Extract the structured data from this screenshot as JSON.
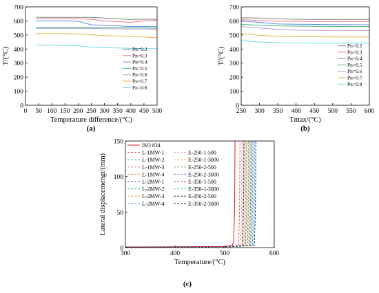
{
  "figure": {
    "panels": [
      "(a)",
      "(b)",
      "(c)"
    ]
  },
  "chart_data": [
    {
      "type": "line",
      "panel": "(a)",
      "xlabel": "Temperature difference/(°C)",
      "ylabel": "T/(°C)",
      "xlim": [
        0,
        500
      ],
      "ylim": [
        0,
        700
      ],
      "xticks": [
        0,
        50,
        100,
        150,
        200,
        250,
        300,
        350,
        400,
        450,
        500
      ],
      "yticks": [
        0,
        100,
        200,
        300,
        400,
        500,
        600,
        700
      ],
      "legend_position": "right",
      "x": [
        40,
        100,
        200,
        250,
        300,
        400,
        450,
        500
      ],
      "series": [
        {
          "name": "Pn=0.2",
          "color": "#808080",
          "values": [
            625,
            625,
            625,
            625,
            620,
            610,
            612,
            612
          ]
        },
        {
          "name": "Pn=0.3",
          "color": "#e87a80",
          "values": [
            615,
            615,
            615,
            612,
            600,
            590,
            600,
            605
          ]
        },
        {
          "name": "Pn=0.4",
          "color": "#5a8cd8",
          "values": [
            600,
            600,
            598,
            572,
            570,
            560,
            560,
            560
          ]
        },
        {
          "name": "Pn=0.5",
          "color": "#3cb878",
          "values": [
            555,
            555,
            555,
            555,
            552,
            550,
            550,
            548
          ]
        },
        {
          "name": "Pn=0.6",
          "color": "#b09ad8",
          "values": [
            547,
            547,
            547,
            546,
            545,
            543,
            542,
            541
          ]
        },
        {
          "name": "Pn=0.7",
          "color": "#e6b040",
          "values": [
            510,
            510,
            508,
            502,
            495,
            490,
            485,
            480
          ]
        },
        {
          "name": "Pn=0.8",
          "color": "#6fd8e0",
          "values": [
            428,
            428,
            424,
            412,
            410,
            405,
            403,
            402
          ]
        }
      ]
    },
    {
      "type": "line",
      "panel": "(b)",
      "xlabel": "Tmax/(°C)",
      "ylabel": "T/(°C)",
      "xlim": [
        250,
        600
      ],
      "ylim": [
        0,
        700
      ],
      "xticks": [
        250,
        300,
        350,
        400,
        450,
        500,
        550,
        600
      ],
      "yticks": [
        0,
        100,
        200,
        300,
        400,
        500,
        600,
        700
      ],
      "legend_position": "right",
      "x": [
        250,
        300,
        350,
        400,
        450,
        500,
        550,
        600
      ],
      "series": [
        {
          "name": "Pn=0.2",
          "color": "#808080",
          "values": [
            623,
            620,
            615,
            612,
            611,
            611,
            610,
            610
          ]
        },
        {
          "name": "Pn=0.3",
          "color": "#e87a80",
          "values": [
            610,
            602,
            598,
            597,
            596,
            596,
            595,
            595
          ]
        },
        {
          "name": "Pn=0.4",
          "color": "#5a8cd8",
          "values": [
            598,
            590,
            578,
            576,
            575,
            574,
            573,
            572
          ]
        },
        {
          "name": "Pn=0.5",
          "color": "#3cb878",
          "values": [
            575,
            570,
            565,
            563,
            562,
            561,
            560,
            560
          ]
        },
        {
          "name": "Pn=0.6",
          "color": "#b09ad8",
          "values": [
            560,
            550,
            540,
            535,
            533,
            532,
            532,
            531
          ]
        },
        {
          "name": "Pn=0.7",
          "color": "#e6b040",
          "values": [
            510,
            498,
            490,
            488,
            487,
            486,
            486,
            485
          ]
        },
        {
          "name": "Pn=0.8",
          "color": "#6fd8e0",
          "values": [
            460,
            450,
            444,
            443,
            442,
            442,
            441,
            441
          ]
        }
      ]
    },
    {
      "type": "line",
      "panel": "(c)",
      "xlabel": "Temperature/(°C)",
      "ylabel": "Lateral displacemengt/(mm)",
      "xlim": [
        300,
        600
      ],
      "ylim": [
        0,
        150
      ],
      "xticks": [
        300,
        400,
        500,
        600
      ],
      "yticks": [
        0,
        50,
        100,
        150
      ],
      "legend_position": "top-left",
      "series": [
        {
          "name": "ISO 834",
          "color": "#d62020",
          "dash": "",
          "xs": [
            300,
            500,
            515,
            518,
            520,
            521
          ],
          "ys": [
            1,
            1.5,
            3,
            8,
            50,
            150
          ]
        },
        {
          "name": "L-1MW-1",
          "color": "#e05050",
          "dash": "3 2",
          "xs": [
            300,
            500,
            528,
            530,
            531
          ],
          "ys": [
            0.5,
            1,
            3,
            50,
            150
          ]
        },
        {
          "name": "L-1MW-2",
          "color": "#40c0d0",
          "dash": "3 2",
          "xs": [
            300,
            500,
            540,
            542,
            543
          ],
          "ys": [
            0.5,
            1,
            3,
            50,
            150
          ]
        },
        {
          "name": "L-1MW-3",
          "color": "#e07070",
          "dash": "3 2",
          "xs": [
            300,
            500,
            535,
            537,
            538
          ],
          "ys": [
            0.5,
            1,
            3,
            50,
            150
          ]
        },
        {
          "name": "L-1MW-4",
          "color": "#e0a020",
          "dash": "3 2",
          "xs": [
            300,
            500,
            545,
            547,
            548
          ],
          "ys": [
            0.5,
            1,
            3,
            50,
            150
          ]
        },
        {
          "name": "L-2MW-1",
          "color": "#4070d0",
          "dash": "3 2",
          "xs": [
            300,
            500,
            550,
            552,
            553
          ],
          "ys": [
            0.5,
            1,
            3,
            50,
            150
          ]
        },
        {
          "name": "L-2MW-2",
          "color": "#30b070",
          "dash": "3 2",
          "xs": [
            300,
            500,
            552,
            554,
            555
          ],
          "ys": [
            0.5,
            1,
            3,
            50,
            150
          ]
        },
        {
          "name": "L-2MW-3",
          "color": "#e0b040",
          "dash": "3 2",
          "xs": [
            300,
            500,
            548,
            550,
            551
          ],
          "ys": [
            0.5,
            1,
            3,
            50,
            150
          ]
        },
        {
          "name": "L-2MW-4",
          "color": "#60a0e0",
          "dash": "3 2",
          "xs": [
            300,
            500,
            556,
            558,
            559
          ],
          "ys": [
            0.5,
            1,
            3,
            50,
            150
          ]
        },
        {
          "name": "E-250-1-500",
          "color": "#f0a0b0",
          "dash": "3 2",
          "xs": [
            300,
            500,
            532,
            534,
            535
          ],
          "ys": [
            0.5,
            1,
            3,
            50,
            150
          ]
        },
        {
          "name": "E-250-1-3000",
          "color": "#f0c060",
          "dash": "3 2",
          "xs": [
            300,
            500,
            538,
            540,
            541
          ],
          "ys": [
            0.5,
            1,
            3,
            50,
            150
          ]
        },
        {
          "name": "E-250-2-500",
          "color": "#60c060",
          "dash": "3 2",
          "xs": [
            300,
            500,
            546,
            548,
            549
          ],
          "ys": [
            0.5,
            1,
            3,
            50,
            150
          ]
        },
        {
          "name": "E-250-2-3000",
          "color": "#9080d0",
          "dash": "3 2",
          "xs": [
            300,
            500,
            554,
            556,
            557
          ],
          "ys": [
            0.5,
            1,
            3,
            50,
            150
          ]
        },
        {
          "name": "E-350-1-500",
          "color": "#e04040",
          "dash": "3 2",
          "xs": [
            300,
            500,
            542,
            544,
            545
          ],
          "ys": [
            0.5,
            1,
            3,
            50,
            150
          ]
        },
        {
          "name": "E-350-1-3000",
          "color": "#50c0e0",
          "dash": "3 2",
          "xs": [
            300,
            500,
            558,
            560,
            561
          ],
          "ys": [
            0.5,
            1,
            3,
            50,
            150
          ]
        },
        {
          "name": "E-350-2-500",
          "color": "#404040",
          "dash": "3 2",
          "xs": [
            300,
            500,
            536,
            538,
            539
          ],
          "ys": [
            0.5,
            1,
            3,
            50,
            150
          ]
        },
        {
          "name": "E-350-2-3000",
          "color": "#303060",
          "dash": "3 2",
          "xs": [
            300,
            500,
            560,
            562,
            563
          ],
          "ys": [
            0.5,
            1,
            3,
            50,
            150
          ]
        }
      ]
    }
  ]
}
